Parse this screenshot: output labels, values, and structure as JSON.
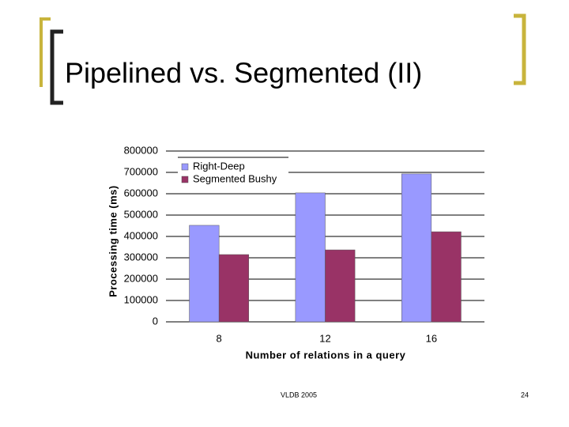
{
  "slide": {
    "title": "Pipelined vs. Segmented (II)",
    "footer": "VLDB 2005",
    "page_number": "24"
  },
  "chart_data": {
    "type": "bar",
    "x_label": "Number of relations in a query",
    "y_label": "Processing time (ms)",
    "categories": [
      "8",
      "12",
      "16"
    ],
    "series": [
      {
        "name": "Right-Deep",
        "color": "#9999ff",
        "values": [
          452000,
          604000,
          693000
        ]
      },
      {
        "name": "Segmented Bushy",
        "color": "#993366",
        "values": [
          315000,
          337000,
          422000
        ]
      }
    ],
    "ylim": [
      0,
      800000
    ],
    "yticks": [
      0,
      100000,
      200000,
      300000,
      400000,
      500000,
      600000,
      700000,
      800000
    ],
    "grid": true,
    "legend": "upper-left"
  }
}
